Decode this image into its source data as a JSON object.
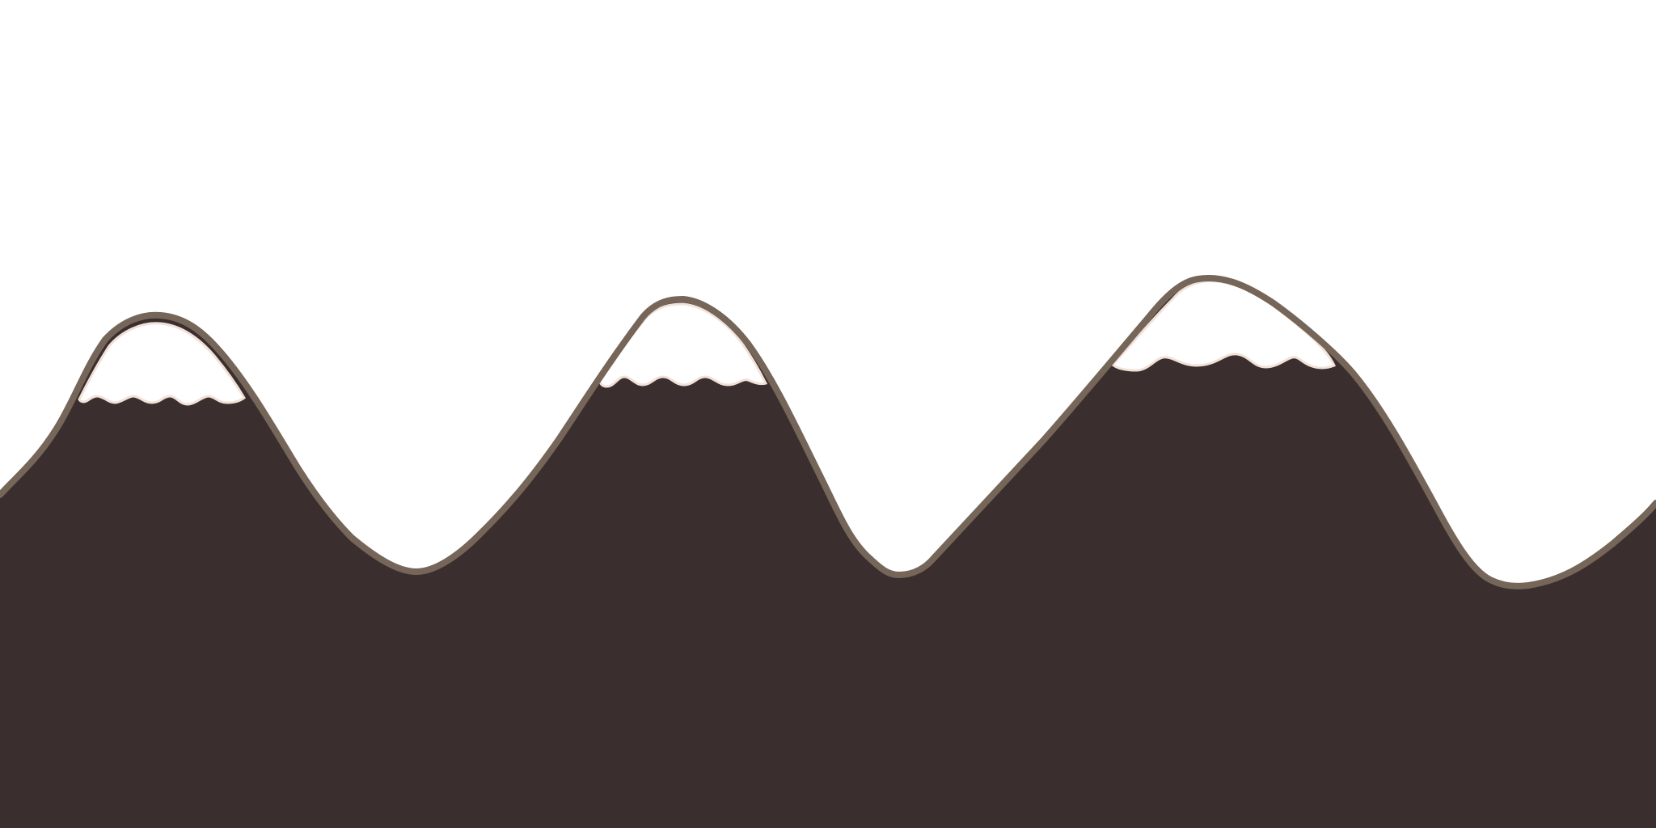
{
  "scene": {
    "description_free": true,
    "background_color": "#ffffff",
    "colors": {
      "mountain_fill": "#3a2f2e",
      "mountain_outline": "#756659",
      "snow_fill": "#ffffff",
      "snow_edge": "#f2e1d8"
    },
    "peaks": [
      {
        "name": "left-peak"
      },
      {
        "name": "middle-peak"
      },
      {
        "name": "right-peak"
      }
    ]
  }
}
